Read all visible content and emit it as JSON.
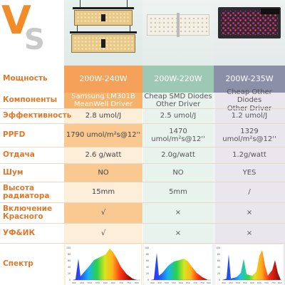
{
  "header": {
    "logo_v": "V",
    "logo_s": "S",
    "product_images": [
      "meanwell-quantum-board-light",
      "white-smd-led-panel",
      "dark-led-box-light"
    ]
  },
  "columns": {
    "first_color": "#f5a15a",
    "second_color": "#9cc8b4",
    "third_color": "#8c8fa8",
    "label_color": "#e0782a"
  },
  "rows": [
    {
      "label": "Мощность",
      "values": [
        "200W-240W",
        "200W-220W",
        "200W-235W"
      ]
    },
    {
      "label": "Компоненты",
      "values": [
        "Samsung LM301B\nMeanWell Driver",
        "Cheap SMD Diodes\nOther Driver",
        "Cheap Other Diodes\nOther Driver"
      ]
    },
    {
      "label": "Эффективность",
      "values": [
        "2.8 umol/J",
        "2.5 umol/J",
        "1.2 umol/J"
      ]
    },
    {
      "label": "PPFD",
      "values": [
        "1790 umol/m²s@12''",
        "1470 umol/m²s@12''",
        "1329 umol/m²s@12''"
      ]
    },
    {
      "label": "Отдача",
      "values": [
        "2.6 g/watt",
        "2.0g/watt",
        "1.2g/watt"
      ]
    },
    {
      "label": "Шум",
      "values": [
        "NO",
        "NO",
        "YES"
      ]
    },
    {
      "label": "Высота\nрадиатора",
      "values": [
        "15mm",
        "5mm",
        "/"
      ]
    },
    {
      "label": "Включение\nКрасного",
      "values": [
        "√",
        "×",
        "×"
      ]
    },
    {
      "label": "УФ&ИК",
      "values": [
        "√",
        "×",
        "×"
      ]
    },
    {
      "label": "Спектр",
      "values": [
        "",
        "",
        ""
      ]
    }
  ],
  "spectrum": {
    "y_ticks": [
      "100",
      "80",
      "60",
      "40",
      "20",
      "0"
    ],
    "x_ticks": [
      "400",
      "450",
      "500",
      "550",
      "600",
      "650",
      "700",
      "750",
      "800"
    ]
  }
}
